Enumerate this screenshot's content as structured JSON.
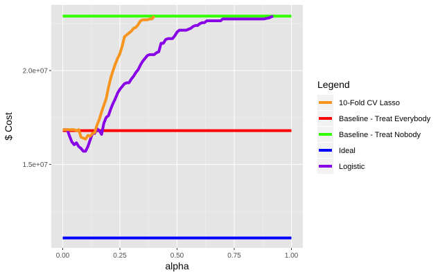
{
  "chart_data": {
    "type": "line",
    "xlabel": "alpha",
    "ylabel": "$ Cost",
    "xlim": [
      -0.05,
      1.05
    ],
    "ylim": [
      10550000,
      23500000
    ],
    "x_ticks": [
      {
        "value": 0.0,
        "label": "0.00"
      },
      {
        "value": 0.25,
        "label": "0.25"
      },
      {
        "value": 0.5,
        "label": "0.50"
      },
      {
        "value": 0.75,
        "label": "0.75"
      },
      {
        "value": 1.0,
        "label": "1.00"
      }
    ],
    "y_ticks": [
      {
        "value": 15000000,
        "label": "1.5e+07"
      },
      {
        "value": 20000000,
        "label": "2.0e+07"
      }
    ],
    "grid": true,
    "background": "#e5e5e5",
    "legend": {
      "title": "Legend",
      "position": "right",
      "entries": [
        {
          "label": "10-Fold CV Lasso",
          "color": "#f7941d"
        },
        {
          "label": "Baseline - Treat Everybody",
          "color": "#ff0000"
        },
        {
          "label": "Baseline - Treat Nobody",
          "color": "#33ff00"
        },
        {
          "label": "Ideal",
          "color": "#0000ff"
        },
        {
          "label": "Logistic",
          "color": "#8800e6"
        }
      ]
    },
    "series": [
      {
        "name": "Baseline - Treat Nobody",
        "color": "#33ff00",
        "points": [
          [
            0.0,
            22900000
          ],
          [
            1.0,
            22900000
          ]
        ]
      },
      {
        "name": "Baseline - Treat Everybody",
        "color": "#ff0000",
        "points": [
          [
            0.0,
            16800000
          ],
          [
            1.0,
            16800000
          ]
        ]
      },
      {
        "name": "Ideal",
        "color": "#0000ff",
        "points": [
          [
            0.0,
            11080000
          ],
          [
            1.0,
            11080000
          ]
        ]
      },
      {
        "name": "Logistic",
        "color": "#8800e6",
        "points": [
          [
            0.0,
            16850000
          ],
          [
            0.02,
            16850000
          ],
          [
            0.03,
            16500000
          ],
          [
            0.04,
            16200000
          ],
          [
            0.05,
            16050000
          ],
          [
            0.06,
            16150000
          ],
          [
            0.07,
            15950000
          ],
          [
            0.08,
            15850000
          ],
          [
            0.09,
            15700000
          ],
          [
            0.1,
            15700000
          ],
          [
            0.11,
            15950000
          ],
          [
            0.12,
            16300000
          ],
          [
            0.13,
            16650000
          ],
          [
            0.14,
            16650000
          ],
          [
            0.15,
            16900000
          ],
          [
            0.16,
            16800000
          ],
          [
            0.17,
            16600000
          ],
          [
            0.18,
            17200000
          ],
          [
            0.19,
            17500000
          ],
          [
            0.2,
            17600000
          ],
          [
            0.21,
            17950000
          ],
          [
            0.22,
            18250000
          ],
          [
            0.23,
            18500000
          ],
          [
            0.24,
            18800000
          ],
          [
            0.25,
            19000000
          ],
          [
            0.26,
            19150000
          ],
          [
            0.27,
            19300000
          ],
          [
            0.28,
            19350000
          ],
          [
            0.29,
            19350000
          ],
          [
            0.3,
            19550000
          ],
          [
            0.31,
            19700000
          ],
          [
            0.32,
            19900000
          ],
          [
            0.33,
            20050000
          ],
          [
            0.34,
            20300000
          ],
          [
            0.35,
            20500000
          ],
          [
            0.36,
            20650000
          ],
          [
            0.37,
            20800000
          ],
          [
            0.38,
            20850000
          ],
          [
            0.39,
            20850000
          ],
          [
            0.4,
            20850000
          ],
          [
            0.41,
            20950000
          ],
          [
            0.42,
            21000000
          ],
          [
            0.43,
            21450000
          ],
          [
            0.44,
            21450000
          ],
          [
            0.45,
            21650000
          ],
          [
            0.46,
            21700000
          ],
          [
            0.47,
            21700000
          ],
          [
            0.48,
            21700000
          ],
          [
            0.49,
            21850000
          ],
          [
            0.5,
            22050000
          ],
          [
            0.51,
            22150000
          ],
          [
            0.52,
            22150000
          ],
          [
            0.53,
            22150000
          ],
          [
            0.54,
            22150000
          ],
          [
            0.55,
            22200000
          ],
          [
            0.56,
            22250000
          ],
          [
            0.57,
            22350000
          ],
          [
            0.58,
            22400000
          ],
          [
            0.59,
            22400000
          ],
          [
            0.6,
            22500000
          ],
          [
            0.61,
            22550000
          ],
          [
            0.62,
            22550000
          ],
          [
            0.63,
            22650000
          ],
          [
            0.64,
            22650000
          ],
          [
            0.65,
            22650000
          ],
          [
            0.66,
            22650000
          ],
          [
            0.67,
            22650000
          ],
          [
            0.68,
            22650000
          ],
          [
            0.69,
            22650000
          ],
          [
            0.7,
            22750000
          ],
          [
            0.71,
            22750000
          ],
          [
            0.72,
            22750000
          ],
          [
            0.75,
            22750000
          ],
          [
            0.8,
            22750000
          ],
          [
            0.85,
            22750000
          ],
          [
            0.88,
            22750000
          ],
          [
            0.9,
            22800000
          ],
          [
            0.92,
            22900000
          ]
        ]
      },
      {
        "name": "10-Fold CV Lasso",
        "color": "#f7941d",
        "points": [
          [
            0.0,
            16850000
          ],
          [
            0.02,
            16850000
          ],
          [
            0.05,
            16850000
          ],
          [
            0.06,
            16800000
          ],
          [
            0.07,
            16850000
          ],
          [
            0.08,
            16450000
          ],
          [
            0.09,
            16400000
          ],
          [
            0.1,
            16350000
          ],
          [
            0.11,
            16550000
          ],
          [
            0.12,
            16500000
          ],
          [
            0.13,
            16650000
          ],
          [
            0.14,
            16700000
          ],
          [
            0.15,
            17100000
          ],
          [
            0.16,
            17400000
          ],
          [
            0.17,
            17800000
          ],
          [
            0.18,
            18150000
          ],
          [
            0.19,
            18500000
          ],
          [
            0.2,
            19100000
          ],
          [
            0.21,
            19600000
          ],
          [
            0.22,
            20000000
          ],
          [
            0.23,
            20350000
          ],
          [
            0.24,
            20650000
          ],
          [
            0.25,
            20900000
          ],
          [
            0.26,
            21300000
          ],
          [
            0.27,
            21800000
          ],
          [
            0.28,
            21900000
          ],
          [
            0.29,
            22000000
          ],
          [
            0.3,
            22100000
          ],
          [
            0.31,
            22250000
          ],
          [
            0.32,
            22300000
          ],
          [
            0.33,
            22450000
          ],
          [
            0.34,
            22650000
          ],
          [
            0.35,
            22700000
          ],
          [
            0.36,
            22700000
          ],
          [
            0.37,
            22700000
          ],
          [
            0.38,
            22750000
          ],
          [
            0.39,
            22750000
          ],
          [
            0.4,
            22900000
          ]
        ]
      }
    ]
  }
}
